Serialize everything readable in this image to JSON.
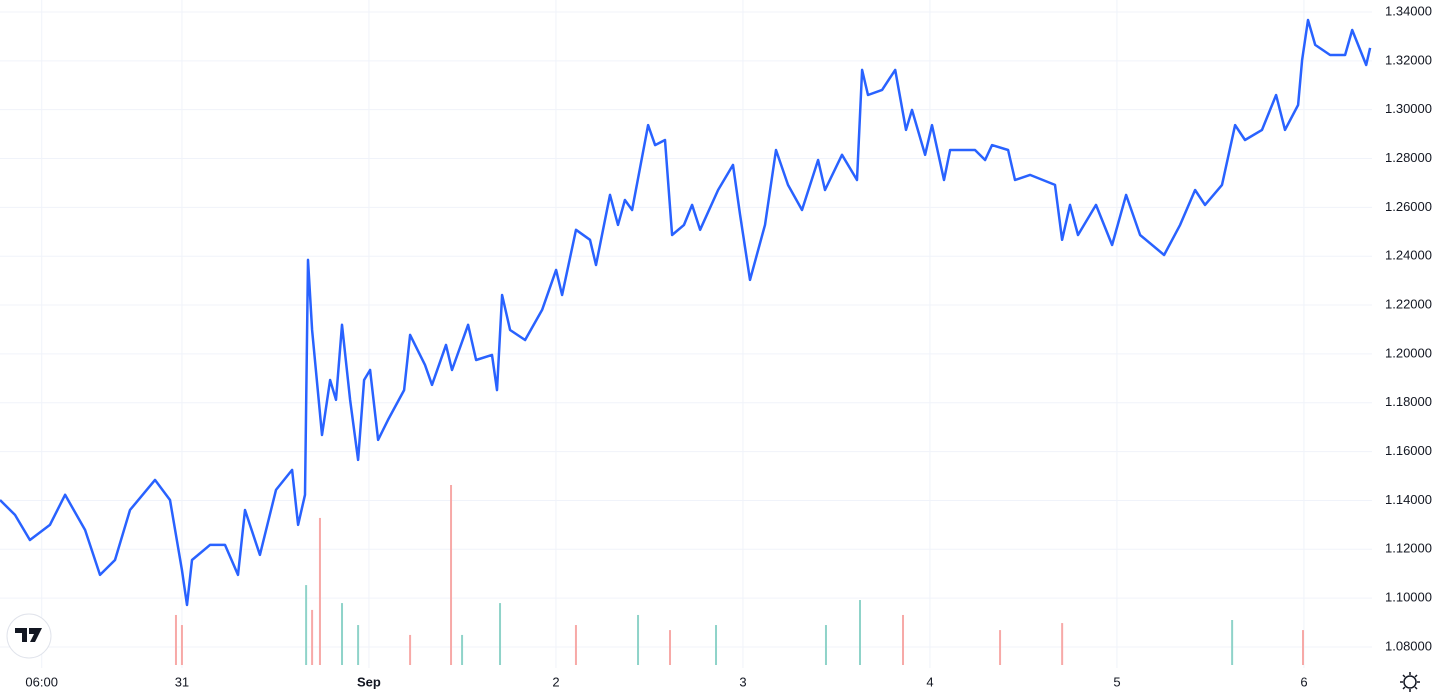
{
  "chart_data": {
    "type": "line",
    "line": {
      "color": "#2962ff",
      "x": [
        30.027,
        30.107,
        30.187,
        30.294,
        30.375,
        30.482,
        30.562,
        30.642,
        30.722,
        30.856,
        30.936,
        31.0,
        31.027,
        31.054,
        31.15,
        31.23,
        31.3,
        31.337,
        31.417,
        31.503,
        31.589,
        31.621,
        31.658,
        31.674,
        31.696,
        31.749,
        31.792,
        31.824,
        31.856,
        31.899,
        31.942,
        31.974,
        32.006,
        32.049,
        32.102,
        32.188,
        32.22,
        32.3,
        32.337,
        32.412,
        32.444,
        32.53,
        32.573,
        32.658,
        32.685,
        32.712,
        32.755,
        32.835,
        32.926,
        33.001,
        33.033,
        33.107,
        33.182,
        33.214,
        33.289,
        33.332,
        33.369,
        33.407,
        33.493,
        33.53,
        33.583,
        33.621,
        33.685,
        33.728,
        33.771,
        33.867,
        33.947,
        33.985,
        34.038,
        34.118,
        34.177,
        34.241,
        34.316,
        34.402,
        34.439,
        34.53,
        34.61,
        34.637,
        34.669,
        34.744,
        34.814,
        34.872,
        34.904,
        34.974,
        35.011,
        35.075,
        35.108,
        35.241,
        35.295,
        35.332,
        35.418,
        35.455,
        35.535,
        35.669,
        35.707,
        35.749,
        35.792,
        35.888,
        35.974,
        36.049,
        36.124,
        36.252,
        36.338,
        36.418,
        36.471,
        36.562,
        36.632,
        36.685,
        36.776,
        36.851,
        36.899,
        36.969,
        36.99,
        37.022,
        37.06,
        37.14,
        37.22,
        37.258,
        37.333,
        37.354
      ],
      "values": [
        1.1402,
        1.1341,
        1.1238,
        1.13,
        1.1423,
        1.1279,
        1.1095,
        1.1156,
        1.1361,
        1.1484,
        1.1402,
        1.1116,
        1.0972,
        1.1156,
        1.1218,
        1.1218,
        1.1095,
        1.1361,
        1.1177,
        1.1443,
        1.1525,
        1.13,
        1.1423,
        1.2385,
        1.2098,
        1.1668,
        1.1893,
        1.1812,
        1.2119,
        1.1812,
        1.1566,
        1.1893,
        1.1934,
        1.1648,
        1.173,
        1.1852,
        1.2078,
        1.1955,
        1.1873,
        1.2037,
        1.1934,
        1.2119,
        1.1975,
        1.1996,
        1.1852,
        1.2241,
        1.2098,
        1.2057,
        1.218,
        1.2344,
        1.2241,
        1.2508,
        1.2467,
        1.2364,
        1.2651,
        1.2528,
        1.263,
        1.2589,
        1.2937,
        1.2855,
        1.2876,
        1.2487,
        1.2528,
        1.261,
        1.2508,
        1.2671,
        1.2774,
        1.2569,
        1.2303,
        1.2528,
        1.2835,
        1.2692,
        1.2589,
        1.2794,
        1.2671,
        1.2815,
        1.2712,
        1.3163,
        1.306,
        1.3081,
        1.3163,
        1.2917,
        1.2999,
        1.2815,
        1.2937,
        1.2712,
        1.2835,
        1.2835,
        1.2794,
        1.2855,
        1.2835,
        1.2712,
        1.2733,
        1.2692,
        1.2467,
        1.261,
        1.2487,
        1.261,
        1.2446,
        1.2651,
        1.2487,
        1.2405,
        1.2528,
        1.2671,
        1.261,
        1.2692,
        1.2937,
        1.2876,
        1.2917,
        1.306,
        1.2917,
        1.3019,
        1.3203,
        1.3367,
        1.3265,
        1.3224,
        1.3224,
        1.3326,
        1.3183,
        1.3253
      ]
    },
    "volume": {
      "y2lim": [
        0,
        100
      ],
      "x": [
        30.968,
        31.0,
        31.664,
        31.696,
        31.738,
        31.856,
        31.942,
        32.22,
        32.439,
        32.498,
        32.701,
        33.107,
        33.439,
        33.61,
        33.856,
        34.444,
        34.626,
        34.856,
        35.375,
        35.707,
        36.616,
        36.995
      ],
      "values": [
        27.8,
        22.2,
        44.4,
        30.6,
        81.7,
        34.4,
        22.2,
        16.7,
        100,
        16.7,
        34.4,
        22.2,
        27.8,
        19.4,
        22.2,
        22.2,
        36.1,
        27.8,
        19.4,
        23.3,
        25.0,
        19.4
      ],
      "colors": [
        "#f7a9a7",
        "#f7a9a7",
        "#8fd3c9",
        "#f7a9a7",
        "#f7a9a7",
        "#8fd3c9",
        "#8fd3c9",
        "#f7a9a7",
        "#f7a9a7",
        "#8fd3c9",
        "#8fd3c9",
        "#f7a9a7",
        "#8fd3c9",
        "#f7a9a7",
        "#8fd3c9",
        "#8fd3c9",
        "#8fd3c9",
        "#f7a9a7",
        "#f7a9a7",
        "#f7a9a7",
        "#8fd3c9",
        "#f7a9a7"
      ]
    },
    "xlim": [
      30.027,
      37.364
    ],
    "xticks": [
      {
        "value": 30.25,
        "label": "06:00"
      },
      31,
      {
        "value": 32,
        "label": "Sep"
      },
      {
        "value": 33,
        "label": "2"
      },
      {
        "value": 34,
        "label": "3"
      },
      {
        "value": 35,
        "label": "4"
      },
      {
        "value": 36,
        "label": "5"
      },
      {
        "value": 37,
        "label": "6"
      }
    ],
    "ylim": [
      1.0714,
      1.3449
    ],
    "yticks": [
      {
        "value": 1.08,
        "label": "1.08000"
      },
      {
        "value": 1.1,
        "label": "1.10000"
      },
      {
        "value": 1.12,
        "label": "1.12000"
      },
      {
        "value": 1.14,
        "label": "1.14000"
      },
      {
        "value": 1.16,
        "label": "1.16000"
      },
      {
        "value": 1.18,
        "label": "1.18000"
      },
      {
        "value": 1.2,
        "label": "1.20000"
      },
      {
        "value": 1.22,
        "label": "1.22000"
      },
      {
        "value": 1.24,
        "label": "1.24000"
      },
      {
        "value": 1.26,
        "label": "1.26000"
      },
      {
        "value": 1.28,
        "label": "1.28000"
      },
      {
        "value": 1.3,
        "label": "1.30000"
      },
      {
        "value": 1.32,
        "label": "1.32000"
      },
      {
        "value": 1.34,
        "label": "1.34000"
      }
    ],
    "grid": true
  }
}
